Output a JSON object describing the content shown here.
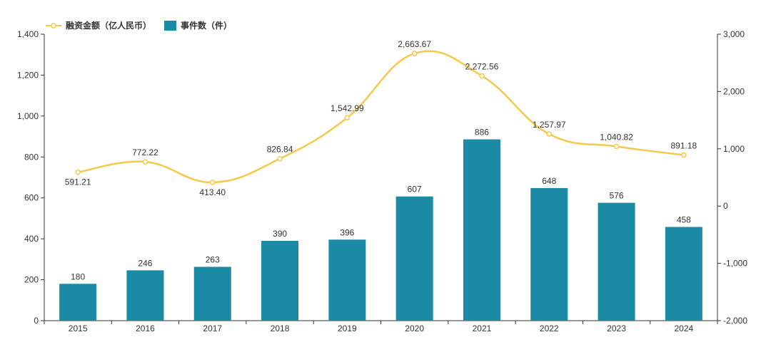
{
  "chart_data": {
    "type": "bar",
    "categories": [
      "2015",
      "2016",
      "2017",
      "2018",
      "2019",
      "2020",
      "2021",
      "2022",
      "2023",
      "2024"
    ],
    "series": [
      {
        "name": "融资金额（亿人民币）",
        "type": "line",
        "axis": "right",
        "values": [
          591.21,
          772.22,
          413.4,
          826.84,
          1542.99,
          2663.67,
          2272.56,
          1257.97,
          1040.82,
          891.18
        ],
        "labels": [
          "591.21",
          "772.22",
          "413.40",
          "826.84",
          "1,542.99",
          "2,663.67",
          "2,272.56",
          "1,257.97",
          "1,040.82",
          "891.18"
        ],
        "color": "#f5c94a"
      },
      {
        "name": "事件数（件）",
        "type": "bar",
        "axis": "left",
        "values": [
          180,
          246,
          263,
          390,
          396,
          607,
          886,
          648,
          576,
          458
        ],
        "labels": [
          "180",
          "246",
          "263",
          "390",
          "396",
          "607",
          "886",
          "648",
          "576",
          "458"
        ],
        "color": "#1a8aa5"
      }
    ],
    "y_left": {
      "range": [
        0,
        1400
      ],
      "ticks": [
        0,
        200,
        400,
        600,
        800,
        1000,
        1200,
        1400
      ],
      "tick_labels": [
        "0",
        "200",
        "400",
        "600",
        "800",
        "1,000",
        "1,200",
        "1,400"
      ]
    },
    "y_right": {
      "range": [
        -2000,
        3000
      ],
      "ticks": [
        -2000,
        -1000,
        0,
        1000,
        2000,
        3000
      ],
      "tick_labels": [
        "-2,000",
        "-1,000",
        "0",
        "1,000",
        "2,000",
        "3,000"
      ]
    },
    "grid": false,
    "legend_position": "top-left",
    "title": "",
    "xlabel": "",
    "ylabel": ""
  }
}
